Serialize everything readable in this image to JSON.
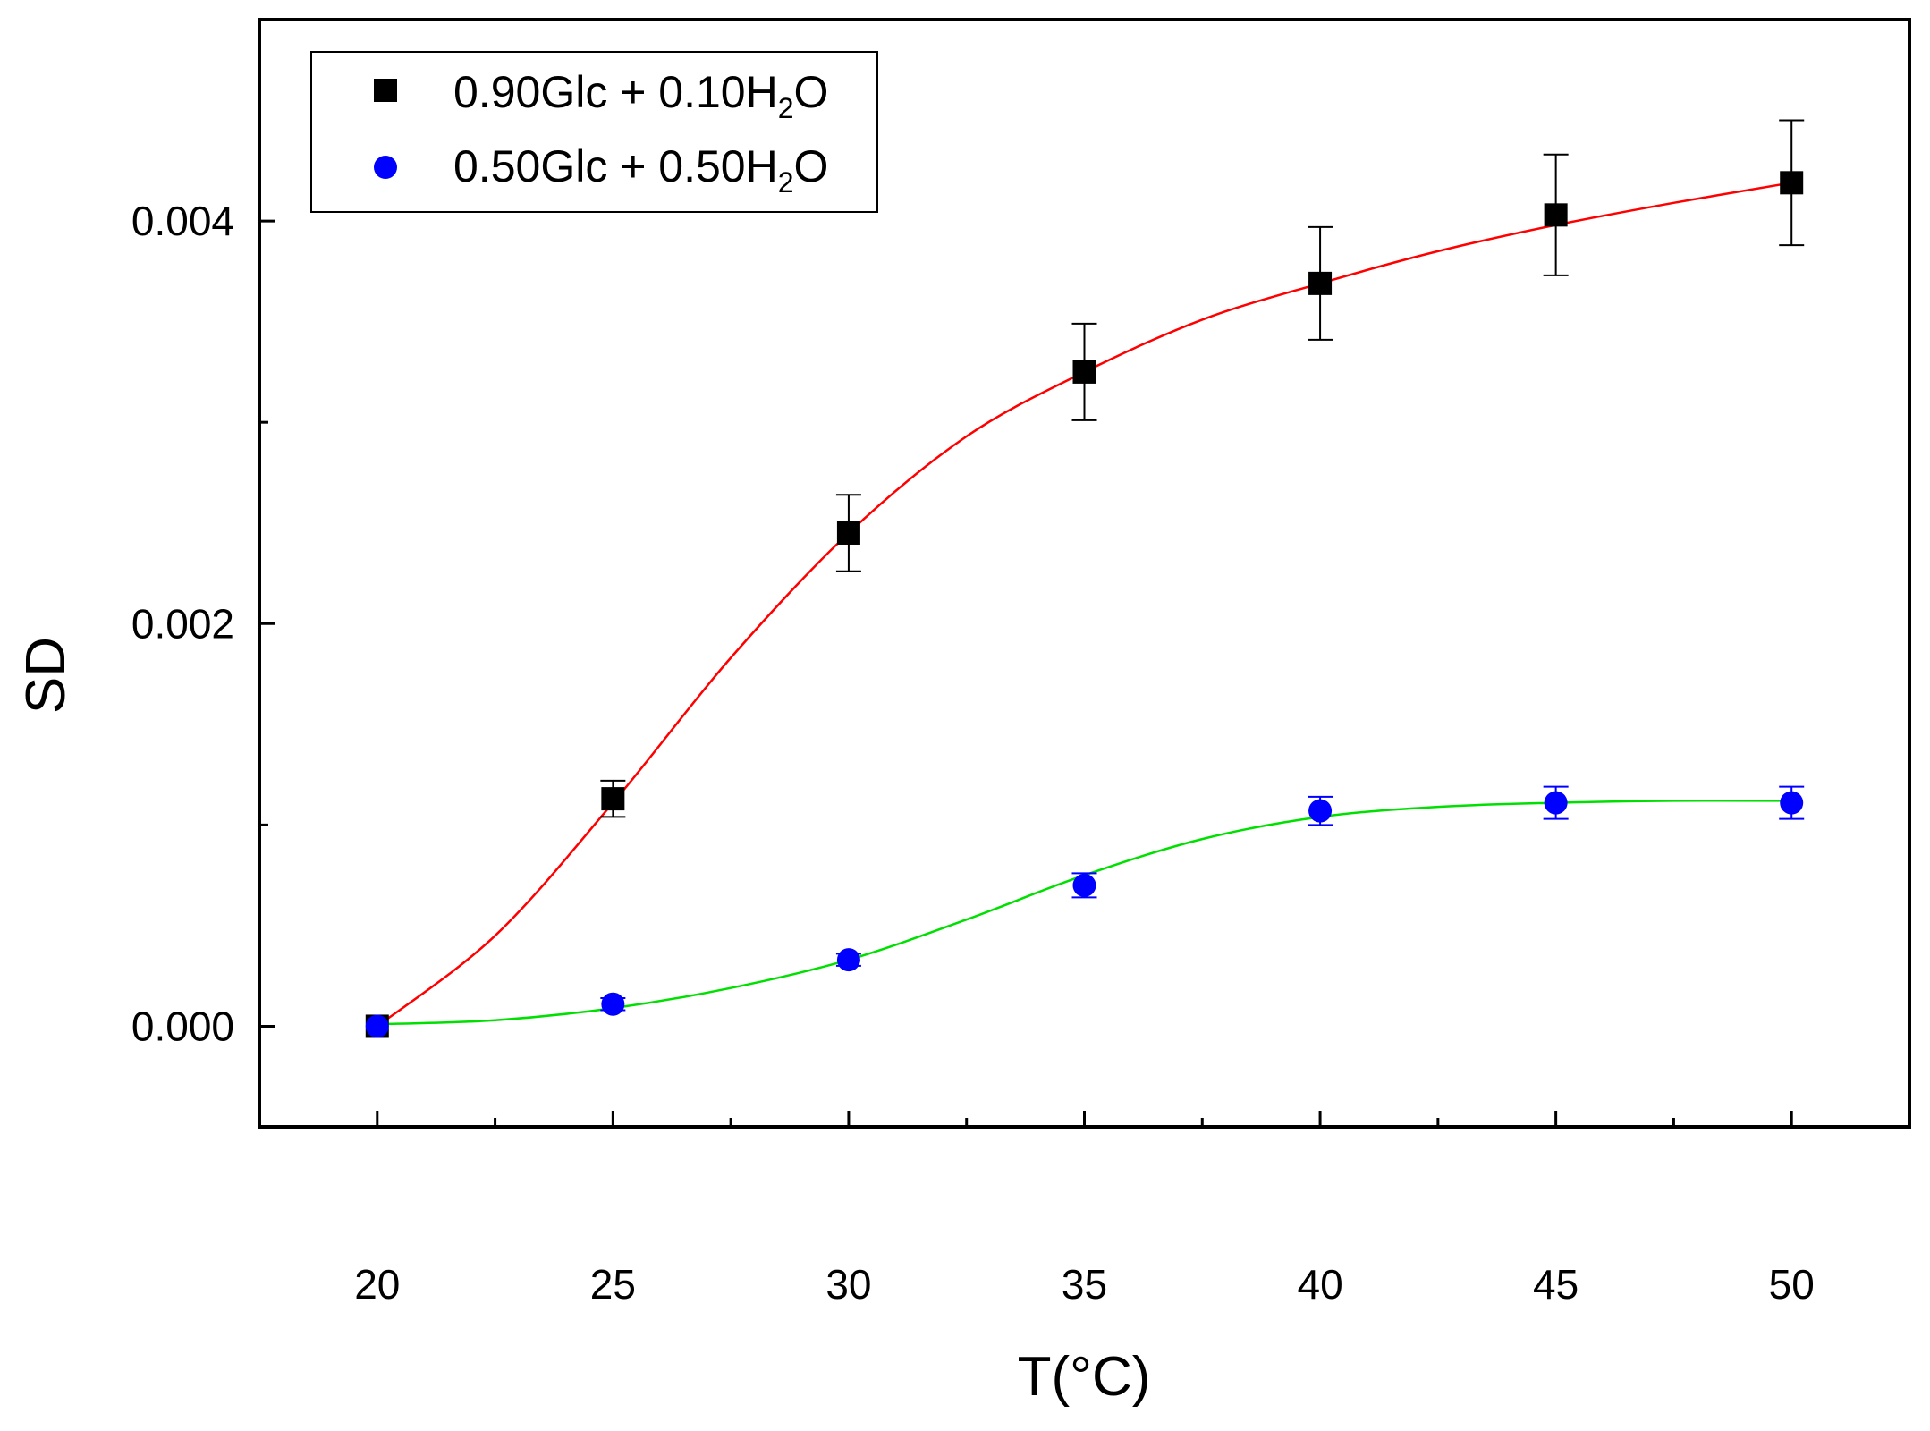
{
  "chart_data": {
    "type": "scatter",
    "title": "",
    "xlabel": "T(°C)",
    "ylabel": "SD",
    "xlim": [
      17.5,
      52.5
    ],
    "ylim": [
      -0.0005,
      0.005
    ],
    "x_major_ticks": [
      20,
      25,
      30,
      35,
      40,
      45,
      50
    ],
    "x_tick_labels": [
      "20",
      "25",
      "30",
      "35",
      "40",
      "45",
      "50"
    ],
    "x_minor_ticks": [
      22.5,
      27.5,
      32.5,
      37.5,
      42.5,
      47.5
    ],
    "y_major_ticks": [
      0,
      0.002,
      0.004
    ],
    "y_tick_labels": [
      "0.000",
      "0.002",
      "0.004"
    ],
    "y_minor_ticks": [
      0.001,
      0.003
    ],
    "grid": false,
    "legend_position": "top-left",
    "series": [
      {
        "name": "0.90Glc + 0.10H2O",
        "legend_parts": {
          "before": "0.90Glc + 0.10H",
          "sub": "2",
          "after": "O"
        },
        "marker": "square",
        "color": "#000000",
        "x": [
          20,
          25,
          30,
          35,
          40,
          45,
          50
        ],
        "values": [
          0.0,
          0.00113,
          0.00245,
          0.00325,
          0.00369,
          0.00403,
          0.00419
        ],
        "errors": [
          0.0,
          9e-05,
          0.00019,
          0.00024,
          0.00028,
          0.0003,
          0.00031
        ],
        "fit_color": "#ff0000",
        "fit": {
          "x": [
            20,
            22.5,
            25,
            27.5,
            30,
            32.5,
            35,
            37.5,
            40,
            42.5,
            45,
            47.5,
            50
          ],
          "y": [
            0.0,
            0.00045,
            0.00111,
            0.00183,
            0.00245,
            0.00293,
            0.00325,
            0.00351,
            0.00369,
            0.00385,
            0.00398,
            0.00409,
            0.00419
          ]
        }
      },
      {
        "name": "0.50Glc + 0.50H2O",
        "legend_parts": {
          "before": "0.50Glc + 0.50H",
          "sub": "2",
          "after": "O"
        },
        "marker": "circle",
        "color": "#0000ff",
        "x": [
          20,
          25,
          30,
          35,
          40,
          45,
          50
        ],
        "values": [
          0.0,
          0.00011,
          0.00033,
          0.0007,
          0.00107,
          0.00111,
          0.00111
        ],
        "errors": [
          0.0,
          3e-05,
          3e-05,
          6e-05,
          7e-05,
          8e-05,
          8e-05
        ],
        "fit_color": "#00e000",
        "fit": {
          "x": [
            20,
            22.5,
            25,
            27.5,
            30,
            32.5,
            35,
            37.5,
            40,
            42.5,
            45,
            47.5,
            50
          ],
          "y": [
            1e-05,
            3e-05,
            9e-05,
            0.00019,
            0.00033,
            0.00053,
            0.00075,
            0.00093,
            0.00104,
            0.00109,
            0.00111,
            0.00112,
            0.00112
          ]
        }
      }
    ]
  }
}
